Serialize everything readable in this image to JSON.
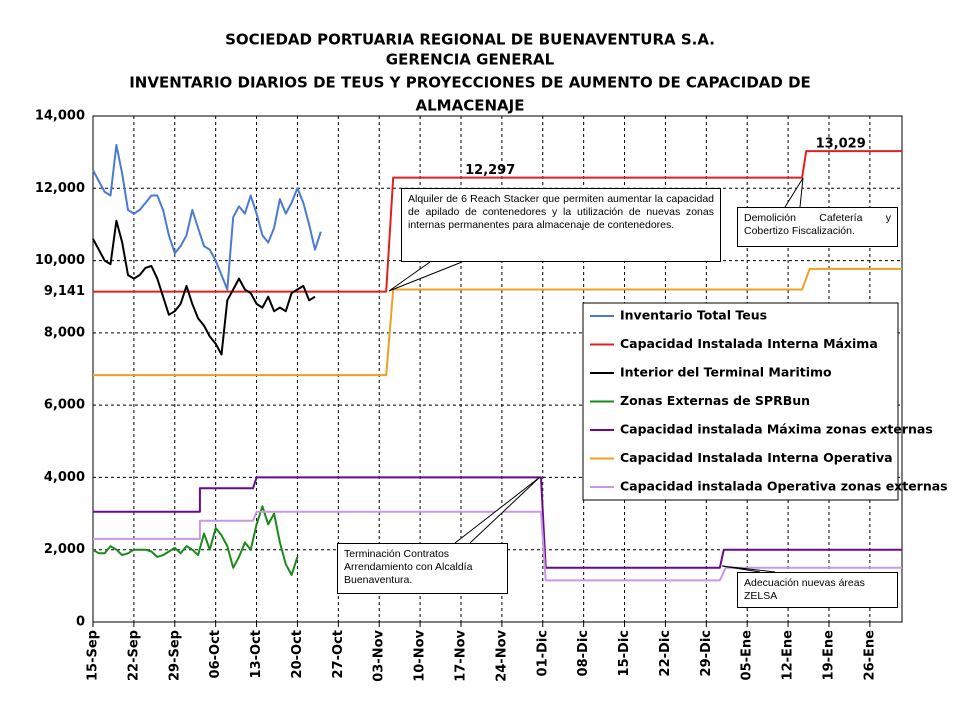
{
  "chart_data": {
    "type": "line",
    "title": [
      "SOCIEDAD PORTUARIA REGIONAL DE BUENAVENTURA S.A.",
      "GERENCIA GENERAL",
      "INVENTARIO DIARIOS DE TEUS Y PROYECCIONES DE AUMENTO DE CAPACIDAD DE",
      "ALMACENAJE"
    ],
    "xlim": [
      0,
      138.5
    ],
    "ylim": [
      0,
      14000
    ],
    "grid": true,
    "xticks": [
      {
        "value": 0,
        "label": "15-Sep"
      },
      {
        "value": 7,
        "label": "22-Sep"
      },
      {
        "value": 14,
        "label": "29-Sep"
      },
      {
        "value": 21,
        "label": "06-Oct"
      },
      {
        "value": 28,
        "label": "13-Oct"
      },
      {
        "value": 35,
        "label": "20-Oct"
      },
      {
        "value": 42,
        "label": "27-Oct"
      },
      {
        "value": 49,
        "label": "03-Nov"
      },
      {
        "value": 56,
        "label": "10-Nov"
      },
      {
        "value": 63,
        "label": "17-Nov"
      },
      {
        "value": 70,
        "label": "24-Nov"
      },
      {
        "value": 77,
        "label": "01-Dic"
      },
      {
        "value": 84,
        "label": "08-Dic"
      },
      {
        "value": 91,
        "label": "15-Dic"
      },
      {
        "value": 98,
        "label": "22-Dic"
      },
      {
        "value": 105,
        "label": "29-Dic"
      },
      {
        "value": 112,
        "label": "05-Ene"
      },
      {
        "value": 119,
        "label": "12-Ene"
      },
      {
        "value": 126,
        "label": "19-Ene"
      },
      {
        "value": 133,
        "label": "26-Ene"
      }
    ],
    "yticks": [
      0,
      {
        "value": 2000,
        "label": "2,000"
      },
      {
        "value": 4000,
        "label": "4,000"
      },
      {
        "value": 6000,
        "label": "6,000"
      },
      {
        "value": 8000,
        "label": "8,000"
      },
      {
        "value": 10000,
        "label": "10,000"
      },
      {
        "value": 12000,
        "label": "12,000"
      },
      {
        "value": 14000,
        "label": "14,000"
      }
    ],
    "series": [
      {
        "name": "Inventario Total Teus",
        "color": "#4a7bd0",
        "x": [
          0,
          1,
          2,
          3,
          4,
          5,
          6,
          7,
          8,
          9,
          10,
          11,
          12,
          13,
          14,
          15,
          16,
          17,
          18,
          19,
          20,
          21,
          22,
          23,
          24,
          25,
          26,
          27,
          28,
          29,
          30,
          31,
          32,
          33,
          34,
          35,
          36,
          37,
          38,
          39
        ],
        "values": [
          12500,
          12200,
          11900,
          11800,
          13200,
          12400,
          11400,
          11300,
          11400,
          11600,
          11800,
          11800,
          11400,
          10700,
          10200,
          10400,
          10700,
          11400,
          10900,
          10400,
          10300,
          10000,
          9600,
          9200,
          11200,
          11500,
          11300,
          11800,
          11300,
          10700,
          10500,
          10900,
          11700,
          11300,
          11600,
          12000,
          11600,
          11000,
          10300,
          10800
        ]
      },
      {
        "name": "Capacidad Instalada Interna Máxima",
        "color": "#e02020",
        "x": [
          0,
          50.2,
          51.4,
          121.4,
          122.1,
          138.5
        ],
        "values": [
          9141,
          9141,
          12297,
          12297,
          13029,
          13029
        ],
        "point_labels": [
          {
            "x": 0,
            "value": 9141,
            "label": "9,141"
          },
          {
            "x": 68,
            "value": 12297,
            "label": "12,297"
          },
          {
            "x": 128,
            "value": 13029,
            "label": "13,029"
          }
        ]
      },
      {
        "name": "Interior del Terminal Maritimo",
        "color": "#000000",
        "x": [
          0,
          1,
          2,
          3,
          4,
          5,
          6,
          7,
          8,
          9,
          10,
          11,
          12,
          13,
          14,
          15,
          16,
          17,
          18,
          19,
          20,
          21,
          22,
          23,
          24,
          25,
          26,
          27,
          28,
          29,
          30,
          31,
          32,
          33,
          34,
          35,
          36,
          37,
          38
        ],
        "values": [
          10600,
          10300,
          10000,
          9900,
          11100,
          10500,
          9600,
          9500,
          9600,
          9800,
          9850,
          9500,
          9000,
          8500,
          8600,
          8800,
          9300,
          8800,
          8400,
          8200,
          7900,
          7700,
          7400,
          8900,
          9200,
          9500,
          9200,
          9100,
          8800,
          8700,
          9000,
          8600,
          8700,
          8600,
          9100,
          9200,
          9300,
          8900,
          9000
        ]
      },
      {
        "name": "Zonas Externas de SPRBun",
        "color": "#1a8a1a",
        "x": [
          0,
          1,
          2,
          3,
          4,
          5,
          6,
          7,
          8,
          9,
          10,
          11,
          12,
          13,
          14,
          15,
          16,
          17,
          18,
          19,
          20,
          21,
          22,
          23,
          24,
          25,
          26,
          27,
          28,
          29,
          30,
          31,
          32,
          33,
          34,
          35
        ],
        "values": [
          2000,
          1900,
          1900,
          2100,
          2000,
          1850,
          1900,
          2000,
          2000,
          2000,
          1950,
          1800,
          1850,
          1950,
          2050,
          1900,
          2100,
          2000,
          1850,
          2450,
          2000,
          2600,
          2400,
          2100,
          1500,
          1800,
          2200,
          2000,
          2700,
          3200,
          2700,
          3000,
          2200,
          1600,
          1300,
          1800
        ]
      },
      {
        "name": "Capacidad instalada Máxima zonas externas",
        "color": "#6a0a8a",
        "x": [
          0,
          18.3,
          18.3,
          27.4,
          28,
          76.7,
          77.5,
          107.3,
          108,
          138.5
        ],
        "values": [
          3050,
          3050,
          3700,
          3700,
          4000,
          4000,
          1500,
          1500,
          2000,
          2000
        ]
      },
      {
        "name": "Capacidad Instalada Interna Operativa",
        "color": "#f0a020",
        "x": [
          0,
          50.2,
          51.4,
          121.4,
          122.7,
          138.5
        ],
        "values": [
          6830,
          6830,
          9200,
          9200,
          9770,
          9770
        ]
      },
      {
        "name": "Capacidad instalada Operativa zonas externas",
        "color": "#c898e0",
        "x": [
          0,
          18.3,
          18.3,
          27.4,
          28,
          76.7,
          77.5,
          107.3,
          108.3,
          138.5
        ],
        "values": [
          2300,
          2300,
          2800,
          2800,
          3050,
          3050,
          1150,
          1150,
          1500,
          1500
        ]
      }
    ],
    "annotations": [
      "Alquiler de 6 Reach Stacker que permiten aumentar la capacidad de apilado de contenedores y la utilización de nuevas zonas internas permanentes para almacenaje de contenedores.",
      "Demolición Cafetería y Cobertizo Fiscalización.",
      "Terminación Contratos Arrendamiento con Alcaldía Buenaventura.",
      "Adecuación nuevas áreas ZELSA"
    ]
  }
}
